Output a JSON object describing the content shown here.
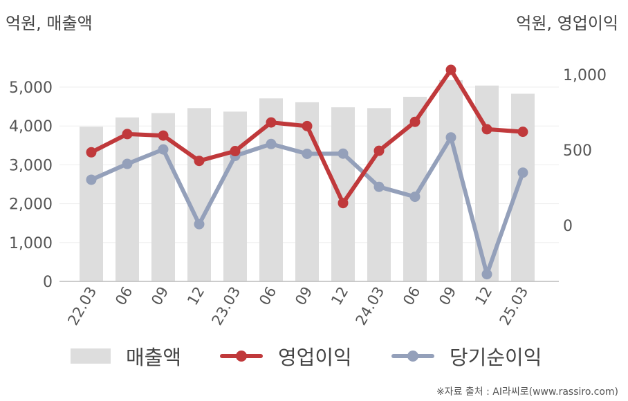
{
  "header": {
    "left_unit": "억원, 매출액",
    "right_unit": "억원, 영업이익"
  },
  "footer": {
    "source": "※자료 출처 : AI라씨로(www.rassiro.com)"
  },
  "legend": {
    "revenue": "매출액",
    "operating_profit": "영업이익",
    "net_income": "당기순이익"
  },
  "colors": {
    "bar": "#dddddd",
    "operating_profit": "#c0393b",
    "net_income": "#94a0ba",
    "axis": "#bbbbbb",
    "grid": "#eeeeee"
  },
  "chart_data": {
    "type": "bar",
    "categories": [
      "22.03",
      "06",
      "09",
      "12",
      "23.03",
      "06",
      "09",
      "12",
      "24.03",
      "06",
      "09",
      "12",
      "25.03"
    ],
    "left_axis": {
      "ylim": [
        0,
        5000
      ],
      "ticks": [
        "0",
        "1,000",
        "2,000",
        "3,000",
        "4,000",
        "5,000"
      ],
      "tick_values": [
        0,
        1000,
        2000,
        3000,
        4000,
        5000
      ]
    },
    "right_axis": {
      "ticks": [
        "0",
        "500",
        "1,000"
      ],
      "tick_values": [
        0,
        500,
        1000
      ]
    },
    "series": [
      {
        "name": "매출액",
        "type": "bar",
        "axis": "left",
        "values": [
          3980,
          4220,
          4330,
          4460,
          4370,
          4710,
          4610,
          4480,
          4460,
          4750,
          5180,
          5040,
          4830
        ]
      },
      {
        "name": "영업이익",
        "type": "line",
        "axis": "right",
        "values": [
          485,
          606,
          596,
          428,
          493,
          683,
          659,
          148,
          495,
          687,
          1032,
          638,
          621
        ]
      },
      {
        "name": "당기순이익",
        "type": "line",
        "axis": "right",
        "values": [
          303,
          408,
          504,
          8,
          461,
          540,
          475,
          476,
          256,
          190,
          584,
          -324,
          350
        ]
      }
    ]
  }
}
